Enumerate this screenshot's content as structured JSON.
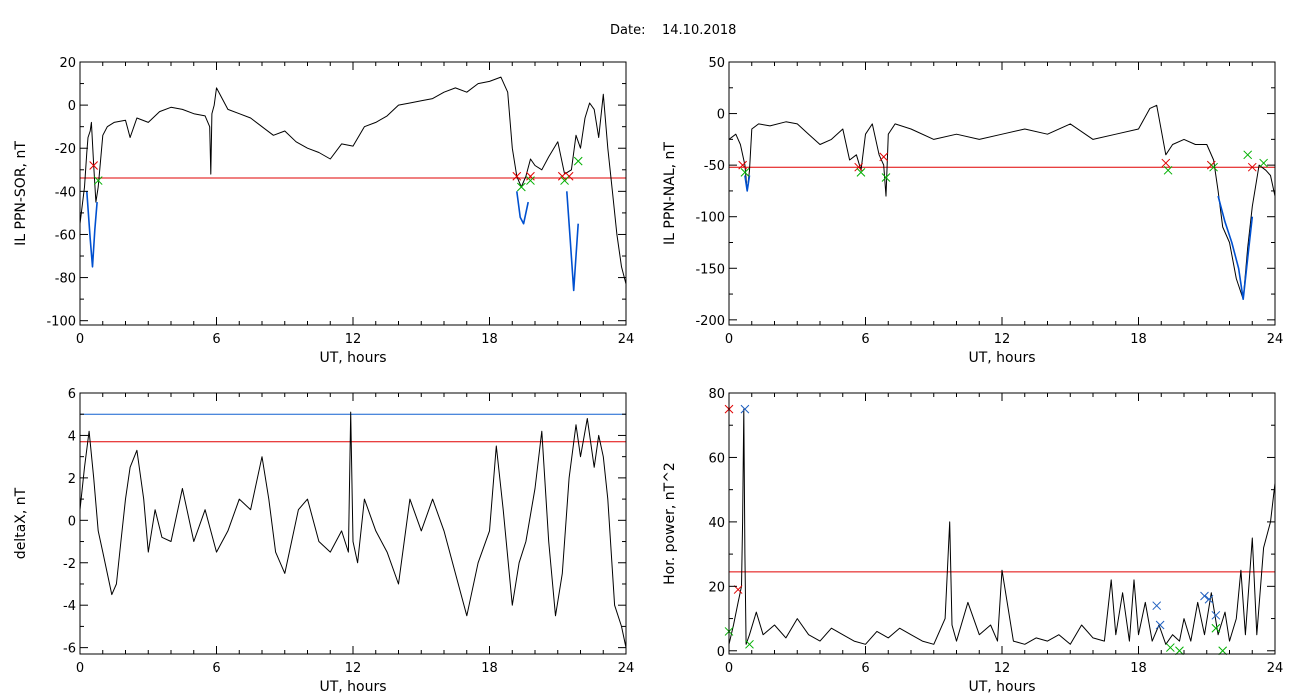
{
  "figure": {
    "title_label": "Date:",
    "title_value": "14.10.2018"
  },
  "chart_data": [
    {
      "type": "line",
      "xlabel": "UT, hours",
      "ylabel": "IL PPN-SOR, nT",
      "xlim": [
        0,
        24
      ],
      "ylim": [
        -102,
        20
      ],
      "xticks": [
        0,
        6,
        12,
        18,
        24
      ],
      "yticks": [
        -100,
        -80,
        -60,
        -40,
        -20,
        0,
        20
      ],
      "grid": false,
      "threshold_lines": [
        {
          "y": -33.8,
          "color": "#e00000"
        }
      ],
      "series": [
        {
          "color": "#000000",
          "x": [
            0,
            0.2,
            0.3,
            0.35,
            0.45,
            0.5,
            0.6,
            0.7,
            0.8,
            1.0,
            1.2,
            1.5,
            2.0,
            2.2,
            2.5,
            3.0,
            3.5,
            4.0,
            4.5,
            5.0,
            5.5,
            5.7,
            5.75,
            5.8,
            5.9,
            6.0,
            6.5,
            7.0,
            7.5,
            8.0,
            8.5,
            9.0,
            9.5,
            10.0,
            10.5,
            11.0,
            11.5,
            12.0,
            12.5,
            13.0,
            13.5,
            14.0,
            14.5,
            15.0,
            15.5,
            16.0,
            16.5,
            17.0,
            17.5,
            18.0,
            18.5,
            18.8,
            19.0,
            19.2,
            19.4,
            19.6,
            19.8,
            20.0,
            20.3,
            20.6,
            21.0,
            21.3,
            21.6,
            21.8,
            22.0,
            22.2,
            22.4,
            22.6,
            22.8,
            23.0,
            23.2,
            23.4,
            23.6,
            23.8,
            24.0
          ],
          "y": [
            -55,
            -38,
            -22,
            -15,
            -12,
            -8,
            -28,
            -45,
            -38,
            -14,
            -10,
            -8,
            -7,
            -15,
            -6,
            -8,
            -3,
            -1,
            -2,
            -4,
            -5,
            -10,
            -32,
            -4,
            0,
            8,
            -2,
            -4,
            -6,
            -10,
            -14,
            -12,
            -17,
            -20,
            -22,
            -25,
            -18,
            -19,
            -10,
            -8,
            -5,
            0,
            1,
            2,
            3,
            6,
            8,
            6,
            10,
            11,
            13,
            6,
            -20,
            -33,
            -38,
            -33,
            -25,
            -28,
            -30,
            -24,
            -17,
            -32,
            -30,
            -14,
            -20,
            -6,
            1,
            -2,
            -15,
            5,
            -20,
            -40,
            -60,
            -75,
            -83
          ]
        },
        {
          "color": "#0050d0",
          "x": [
            0.3,
            0.45,
            0.55,
            0.65,
            0.75
          ],
          "y": [
            -40,
            -62,
            -75,
            -58,
            -45
          ]
        },
        {
          "color": "#0050d0",
          "x": [
            19.2,
            19.35,
            19.5,
            19.7
          ],
          "y": [
            -40,
            -52,
            -55,
            -45
          ]
        },
        {
          "color": "#0050d0",
          "x": [
            21.4,
            21.55,
            21.7,
            21.8,
            21.9
          ],
          "y": [
            -40,
            -63,
            -86,
            -70,
            -55
          ]
        }
      ],
      "markers": [
        {
          "color": "#e00000",
          "x": [
            0.6,
            19.2,
            19.8,
            21.2,
            21.5
          ],
          "y": [
            -28,
            -33,
            -33,
            -33,
            -33
          ]
        },
        {
          "color": "#00b000",
          "x": [
            0.8,
            19.4,
            19.8,
            21.3,
            21.9
          ],
          "y": [
            -35,
            -38,
            -35,
            -35,
            -26
          ]
        }
      ]
    },
    {
      "type": "line",
      "xlabel": "UT, hours",
      "ylabel": "IL PPN-NAL, nT",
      "xlim": [
        0,
        24
      ],
      "ylim": [
        -205,
        50
      ],
      "xticks": [
        0,
        6,
        12,
        18,
        24
      ],
      "yticks": [
        -200,
        -150,
        -100,
        -50,
        0,
        50
      ],
      "grid": false,
      "threshold_lines": [
        {
          "y": -52,
          "color": "#e00000"
        }
      ],
      "series": [
        {
          "color": "#000000",
          "x": [
            0,
            0.3,
            0.5,
            0.7,
            0.8,
            0.9,
            1.0,
            1.3,
            1.8,
            2.5,
            3.0,
            3.5,
            4.0,
            4.5,
            5.0,
            5.3,
            5.6,
            5.8,
            6.0,
            6.3,
            6.6,
            6.8,
            6.9,
            7.0,
            7.3,
            8.0,
            9.0,
            10.0,
            11.0,
            12.0,
            13.0,
            14.0,
            15.0,
            16.0,
            17.0,
            18.0,
            18.5,
            18.8,
            19.2,
            19.5,
            20.0,
            20.5,
            21.0,
            21.3,
            21.5,
            21.7,
            22.0,
            22.3,
            22.6,
            22.8,
            23.0,
            23.3,
            23.6,
            23.8,
            24.0
          ],
          "y": [
            -25,
            -20,
            -30,
            -50,
            -75,
            -55,
            -15,
            -10,
            -12,
            -8,
            -10,
            -20,
            -30,
            -25,
            -15,
            -45,
            -40,
            -55,
            -20,
            -10,
            -40,
            -50,
            -80,
            -20,
            -10,
            -15,
            -25,
            -20,
            -25,
            -20,
            -15,
            -20,
            -10,
            -25,
            -20,
            -15,
            5,
            8,
            -40,
            -30,
            -25,
            -30,
            -30,
            -45,
            -75,
            -110,
            -125,
            -160,
            -180,
            -130,
            -90,
            -50,
            -55,
            -60,
            -80
          ]
        },
        {
          "color": "#0050d0",
          "x": [
            0.7,
            0.8,
            0.9
          ],
          "y": [
            -60,
            -75,
            -60
          ]
        },
        {
          "color": "#0050d0",
          "x": [
            21.5,
            21.8,
            22.1,
            22.4,
            22.6,
            22.8,
            23.0
          ],
          "y": [
            -80,
            -105,
            -125,
            -150,
            -180,
            -140,
            -100
          ]
        }
      ],
      "markers": [
        {
          "color": "#e00000",
          "x": [
            0.6,
            5.7,
            6.8,
            19.2,
            21.2,
            23.0
          ],
          "y": [
            -50,
            -52,
            -42,
            -48,
            -50,
            -52
          ]
        },
        {
          "color": "#00b000",
          "x": [
            0.7,
            5.8,
            6.9,
            19.3,
            21.3,
            22.8,
            23.5
          ],
          "y": [
            -57,
            -57,
            -62,
            -55,
            -52,
            -40,
            -48
          ]
        }
      ]
    },
    {
      "type": "line",
      "xlabel": "UT, hours",
      "ylabel": "deltaX, nT",
      "xlim": [
        0,
        24
      ],
      "ylim": [
        -6.3,
        6
      ],
      "xticks": [
        0,
        6,
        12,
        18,
        24
      ],
      "yticks": [
        -6,
        -4,
        -2,
        0,
        2,
        4,
        6
      ],
      "grid": false,
      "threshold_lines": [
        {
          "y": 5.0,
          "color": "#1060d0"
        },
        {
          "y": 3.7,
          "color": "#e00000"
        }
      ],
      "series": [
        {
          "color": "#000000",
          "x": [
            0,
            0.2,
            0.4,
            0.6,
            0.8,
            1.0,
            1.2,
            1.4,
            1.6,
            1.8,
            2.0,
            2.2,
            2.5,
            2.8,
            3.0,
            3.3,
            3.6,
            4.0,
            4.5,
            5.0,
            5.5,
            6.0,
            6.5,
            7.0,
            7.5,
            8.0,
            8.3,
            8.6,
            9.0,
            9.3,
            9.6,
            10.0,
            10.5,
            11.0,
            11.5,
            11.8,
            11.9,
            12.0,
            12.2,
            12.5,
            13.0,
            13.5,
            14.0,
            14.5,
            15.0,
            15.5,
            16.0,
            16.5,
            17.0,
            17.5,
            18.0,
            18.3,
            18.6,
            19.0,
            19.3,
            19.6,
            20.0,
            20.3,
            20.6,
            20.9,
            21.2,
            21.5,
            21.8,
            22.0,
            22.3,
            22.6,
            22.8,
            23.0,
            23.2,
            23.5,
            23.8,
            24.0
          ],
          "y": [
            0.5,
            2.5,
            4.2,
            2.0,
            -0.5,
            -1.5,
            -2.5,
            -3.5,
            -3.0,
            -1.0,
            1.0,
            2.5,
            3.3,
            1.0,
            -1.5,
            0.5,
            -0.8,
            -1.0,
            1.5,
            -1.0,
            0.5,
            -1.5,
            -0.5,
            1.0,
            0.5,
            3.0,
            1.0,
            -1.5,
            -2.5,
            -1.0,
            0.5,
            1.0,
            -1.0,
            -1.5,
            -0.5,
            -1.5,
            5.1,
            -1.0,
            -2.0,
            1.0,
            -0.5,
            -1.5,
            -3.0,
            1.0,
            -0.5,
            1.0,
            -0.5,
            -2.5,
            -4.5,
            -2.0,
            -0.5,
            3.5,
            0.5,
            -4.0,
            -2.0,
            -1.0,
            1.5,
            4.2,
            -1.0,
            -4.5,
            -2.5,
            2.0,
            4.5,
            3.0,
            4.8,
            2.5,
            4.0,
            3.0,
            1.0,
            -4.0,
            -5.0,
            -6.0
          ]
        }
      ],
      "markers": []
    },
    {
      "type": "line",
      "xlabel": "UT, hours",
      "ylabel": "Hor. power, nT^2",
      "xlim": [
        0,
        24
      ],
      "ylim": [
        -1,
        80
      ],
      "xticks": [
        0,
        6,
        12,
        18,
        24
      ],
      "yticks": [
        0,
        20,
        40,
        60,
        80
      ],
      "grid": false,
      "threshold_lines": [
        {
          "y": 24.5,
          "color": "#e00000"
        }
      ],
      "series": [
        {
          "color": "#000000",
          "x": [
            0,
            0.2,
            0.4,
            0.55,
            0.6,
            0.65,
            0.7,
            0.75,
            0.9,
            1.2,
            1.5,
            2.0,
            2.5,
            3.0,
            3.5,
            4.0,
            4.5,
            5.0,
            5.5,
            6.0,
            6.5,
            7.0,
            7.5,
            8.0,
            8.5,
            9.0,
            9.5,
            9.7,
            9.8,
            10.0,
            10.5,
            11.0,
            11.5,
            11.8,
            12.0,
            12.5,
            13.0,
            13.5,
            14.0,
            14.5,
            15.0,
            15.5,
            16.0,
            16.5,
            16.8,
            17.0,
            17.3,
            17.6,
            17.8,
            18.0,
            18.3,
            18.6,
            18.9,
            19.2,
            19.5,
            19.8,
            20.0,
            20.3,
            20.6,
            20.9,
            21.2,
            21.5,
            21.8,
            22.0,
            22.3,
            22.5,
            22.7,
            23.0,
            23.2,
            23.5,
            23.8,
            24.0
          ],
          "y": [
            2,
            8,
            15,
            20,
            40,
            75,
            30,
            2,
            5,
            12,
            5,
            8,
            4,
            10,
            5,
            3,
            7,
            5,
            3,
            2,
            6,
            4,
            7,
            5,
            3,
            2,
            10,
            40,
            8,
            3,
            15,
            5,
            8,
            3,
            25,
            3,
            2,
            4,
            3,
            5,
            2,
            8,
            4,
            3,
            22,
            5,
            18,
            3,
            22,
            5,
            15,
            3,
            8,
            2,
            5,
            3,
            10,
            3,
            15,
            5,
            18,
            5,
            12,
            3,
            10,
            25,
            5,
            35,
            5,
            32,
            40,
            52
          ]
        }
      ],
      "markers": [
        {
          "color": "#e00000",
          "x": [
            0,
            0.4
          ],
          "y": [
            75,
            19
          ]
        },
        {
          "color": "#2060c0",
          "x": [
            0.7,
            18.8,
            18.95,
            20.9,
            21.1,
            21.4
          ],
          "y": [
            75,
            14,
            8,
            17,
            16,
            11
          ]
        },
        {
          "color": "#00b000",
          "x": [
            0,
            0.9,
            19.4,
            19.8,
            21.4,
            21.7
          ],
          "y": [
            6,
            2,
            1,
            0,
            7,
            0
          ]
        }
      ]
    }
  ]
}
